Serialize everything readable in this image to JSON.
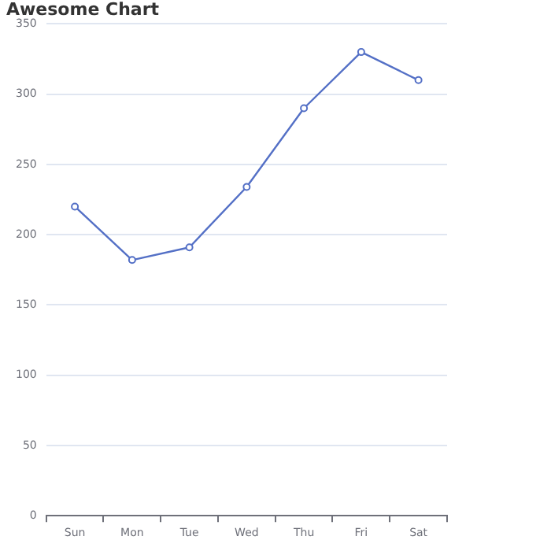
{
  "chart_data": {
    "type": "line",
    "title": "Awesome Chart",
    "categories": [
      "Sun",
      "Mon",
      "Tue",
      "Wed",
      "Thu",
      "Fri",
      "Sat"
    ],
    "values": [
      220,
      182,
      191,
      234,
      290,
      330,
      310
    ],
    "color": "#5470c6",
    "ylim": [
      0,
      350
    ],
    "yticks": [
      0,
      50,
      100,
      150,
      200,
      250,
      300,
      350
    ],
    "grid": "y",
    "marker": "circle"
  }
}
